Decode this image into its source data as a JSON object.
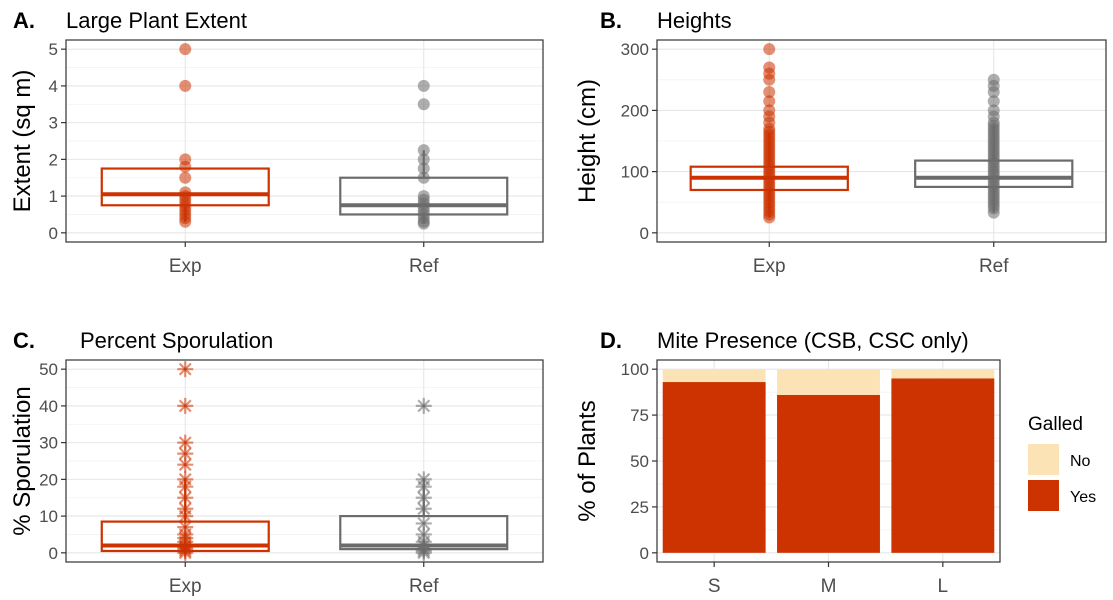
{
  "colors": {
    "exp": "#CC3300",
    "ref": "#6B6B6B",
    "no": "#FCE3B5",
    "yes": "#CC3300",
    "grid": "#E6E6E6",
    "panel_border": "#333333",
    "tick_text": "#4D4D4D",
    "title_text": "#000000"
  },
  "chart_data": [
    {
      "panel": "A.",
      "type": "box",
      "title": "Large Plant Extent",
      "ylabel": "Extent (sq m)",
      "xlabel": "",
      "categories": [
        "Exp",
        "Ref"
      ],
      "ylim": [
        -0.25,
        5.25
      ],
      "yticks": [
        0,
        1,
        2,
        3,
        4,
        5
      ],
      "grid": true,
      "boxes": [
        {
          "name": "Exp",
          "q1": 0.75,
          "median": 1.05,
          "q3": 1.75,
          "whisker_low": 0.3,
          "whisker_high": 1.75,
          "points": [
            0.3,
            0.4,
            0.5,
            0.6,
            0.7,
            0.8,
            0.9,
            1.0,
            1.1,
            1.5,
            1.8,
            2.0,
            4.0,
            5.0
          ]
        },
        {
          "name": "Ref",
          "q1": 0.5,
          "median": 0.75,
          "q3": 1.5,
          "whisker_low": 0.25,
          "whisker_high": 2.25,
          "points": [
            0.25,
            0.3,
            0.4,
            0.5,
            0.6,
            0.7,
            0.8,
            0.9,
            1.0,
            1.5,
            1.75,
            2.0,
            2.25,
            3.5,
            4.0
          ]
        }
      ]
    },
    {
      "panel": "B.",
      "type": "box",
      "title": "Heights",
      "ylabel": "Height (cm)",
      "xlabel": "",
      "categories": [
        "Exp",
        "Ref"
      ],
      "ylim": [
        -15,
        315
      ],
      "yticks": [
        0,
        100,
        200,
        300
      ],
      "grid": true,
      "boxes": [
        {
          "name": "Exp",
          "q1": 70,
          "median": 90,
          "q3": 108,
          "whisker_low": 25,
          "whisker_high": 163,
          "points": [
            25,
            30,
            35,
            40,
            45,
            50,
            55,
            60,
            65,
            70,
            75,
            80,
            85,
            90,
            95,
            100,
            105,
            110,
            115,
            120,
            125,
            130,
            135,
            140,
            145,
            150,
            155,
            160,
            165,
            170,
            180,
            190,
            200,
            215,
            230,
            250,
            260,
            270,
            300
          ]
        },
        {
          "name": "Ref",
          "q1": 75,
          "median": 90,
          "q3": 118,
          "whisker_low": 33,
          "whisker_high": 178,
          "points": [
            33,
            40,
            45,
            50,
            55,
            60,
            65,
            70,
            75,
            80,
            85,
            90,
            95,
            100,
            105,
            110,
            115,
            120,
            125,
            130,
            135,
            140,
            145,
            150,
            155,
            160,
            165,
            170,
            175,
            180,
            190,
            200,
            215,
            230,
            240,
            250
          ]
        }
      ]
    },
    {
      "panel": "C.",
      "type": "box",
      "title": "Percent Sporulation",
      "ylabel": "% Sporulation",
      "xlabel": "",
      "categories": [
        "Exp",
        "Ref"
      ],
      "ylim": [
        -2.5,
        52.5
      ],
      "yticks": [
        0,
        10,
        20,
        30,
        40,
        50
      ],
      "grid": true,
      "boxes": [
        {
          "name": "Exp",
          "q1": 0.5,
          "median": 2,
          "q3": 8.5,
          "whisker_low": 0,
          "whisker_high": 20,
          "points": [
            0,
            0.5,
            1,
            1.5,
            2,
            3,
            4,
            5,
            7,
            10,
            12,
            15,
            18,
            20,
            24,
            27,
            30,
            40,
            50
          ]
        },
        {
          "name": "Ref",
          "q1": 1,
          "median": 2,
          "q3": 10,
          "whisker_low": 0,
          "whisker_high": 20,
          "points": [
            0,
            0.5,
            1,
            2,
            3,
            5,
            8,
            12,
            15,
            18,
            20,
            40
          ]
        }
      ]
    },
    {
      "panel": "D.",
      "type": "bar",
      "stacked": true,
      "title": "Mite Presence (CSB, CSC only)",
      "ylabel": "% of Plants",
      "xlabel": "",
      "categories": [
        "S",
        "M",
        "L"
      ],
      "ylim": [
        -5,
        105
      ],
      "yticks": [
        0,
        25,
        50,
        75,
        100
      ],
      "grid": true,
      "legend": {
        "title": "Galled",
        "position": "right"
      },
      "series": [
        {
          "name": "No",
          "values": [
            7,
            14,
            5
          ]
        },
        {
          "name": "Yes",
          "values": [
            93,
            86,
            95
          ]
        }
      ]
    }
  ]
}
